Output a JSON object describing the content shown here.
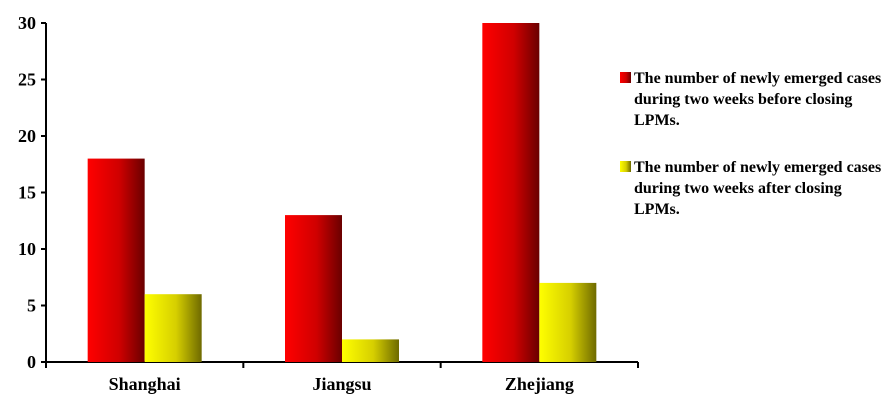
{
  "chart_data": {
    "type": "bar",
    "categories": [
      "Shanghai",
      "Jiangsu",
      "Zhejiang"
    ],
    "series": [
      {
        "name": "The number of newly emerged cases during two weeks before closing LPMs.",
        "values": [
          18,
          13,
          30
        ],
        "color": "#e00000"
      },
      {
        "name": "The number of newly emerged cases during two weeks after closing LPMs.",
        "values": [
          6,
          2,
          7
        ],
        "color": "#ffff00"
      }
    ],
    "title": "",
    "xlabel": "",
    "ylabel": "",
    "ylim": [
      0,
      30
    ],
    "yticks": [
      "0",
      "5",
      "10",
      "15",
      "20",
      "25",
      "30"
    ],
    "grid": false,
    "legend_position": "right"
  }
}
